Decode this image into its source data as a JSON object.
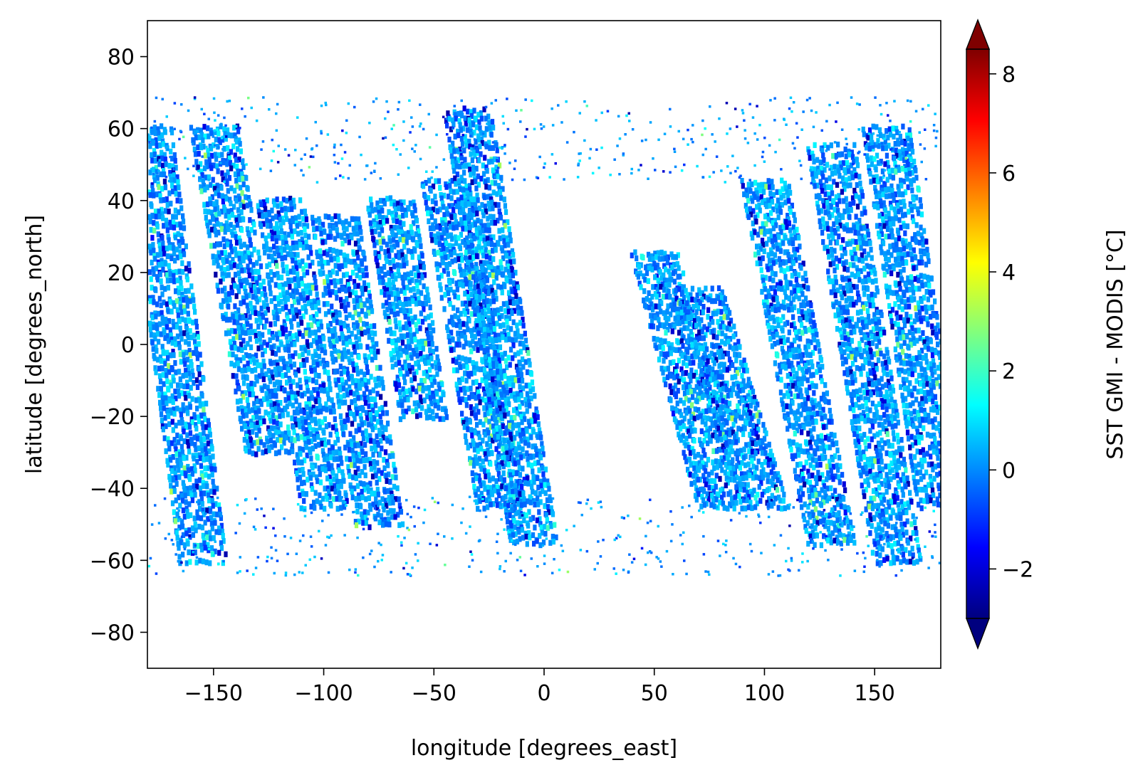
{
  "chart_data": {
    "type": "heatmap",
    "xlabel": "longitude [degrees_east]",
    "ylabel": "latitude [degrees_north]",
    "xlim": [
      -180,
      180
    ],
    "ylim": [
      -90,
      90
    ],
    "xticks": [
      -150,
      -100,
      -50,
      0,
      50,
      100,
      150
    ],
    "xtick_labels": [
      "−150",
      "−100",
      "−50",
      "0",
      "50",
      "100",
      "150"
    ],
    "yticks": [
      80,
      60,
      40,
      20,
      0,
      -20,
      -40,
      -60,
      -80
    ],
    "ytick_labels": [
      "80",
      "60",
      "40",
      "20",
      "0",
      "−20",
      "−40",
      "−60",
      "−80"
    ],
    "colorbar": {
      "label": "SST GMI - MODIS [°C]",
      "vmin": -3,
      "vmax": 8.5,
      "ticks": [
        8,
        6,
        4,
        2,
        0,
        -2
      ],
      "tick_labels": [
        "8",
        "6",
        "4",
        "2",
        "0",
        "−2"
      ],
      "extend": "both",
      "colormap": "jet"
    },
    "grid": false,
    "description_of_field": "Swath-like patches of SST difference covering roughly 70N to 65S, values mostly between -1 and 1, occasional -2 to 3 extremes",
    "swath_segments": [
      {
        "lon_start": -180,
        "lat_start": 60,
        "lon_end": -155,
        "lat_end": -60
      },
      {
        "lon_start": -150,
        "lat_start": 60,
        "lon_end": -125,
        "lat_end": -30
      },
      {
        "lon_start": -120,
        "lat_start": 40,
        "lon_end": -100,
        "lat_end": -45
      },
      {
        "lon_start": -95,
        "lat_start": 35,
        "lon_end": -75,
        "lat_end": -50
      },
      {
        "lon_start": -70,
        "lat_start": 40,
        "lon_end": -55,
        "lat_end": -20
      },
      {
        "lon_start": -45,
        "lat_start": 45,
        "lon_end": -20,
        "lat_end": -45
      },
      {
        "lon_start": -35,
        "lat_start": 65,
        "lon_end": -5,
        "lat_end": -55
      },
      {
        "lon_start": 50,
        "lat_start": 25,
        "lon_end": 80,
        "lat_end": -45
      },
      {
        "lon_start": 70,
        "lat_start": 15,
        "lon_end": 100,
        "lat_end": -45
      },
      {
        "lon_start": 100,
        "lat_start": 45,
        "lon_end": 130,
        "lat_end": -55
      },
      {
        "lon_start": 130,
        "lat_start": 55,
        "lon_end": 160,
        "lat_end": -60
      },
      {
        "lon_start": 155,
        "lat_start": 60,
        "lon_end": 180,
        "lat_end": -45
      }
    ],
    "colors": {
      "jet_stops": [
        "#00007f",
        "#0000ff",
        "#007fff",
        "#00ffff",
        "#7fff7f",
        "#ffff00",
        "#ff7f00",
        "#ff0000",
        "#7f0000"
      ]
    }
  }
}
